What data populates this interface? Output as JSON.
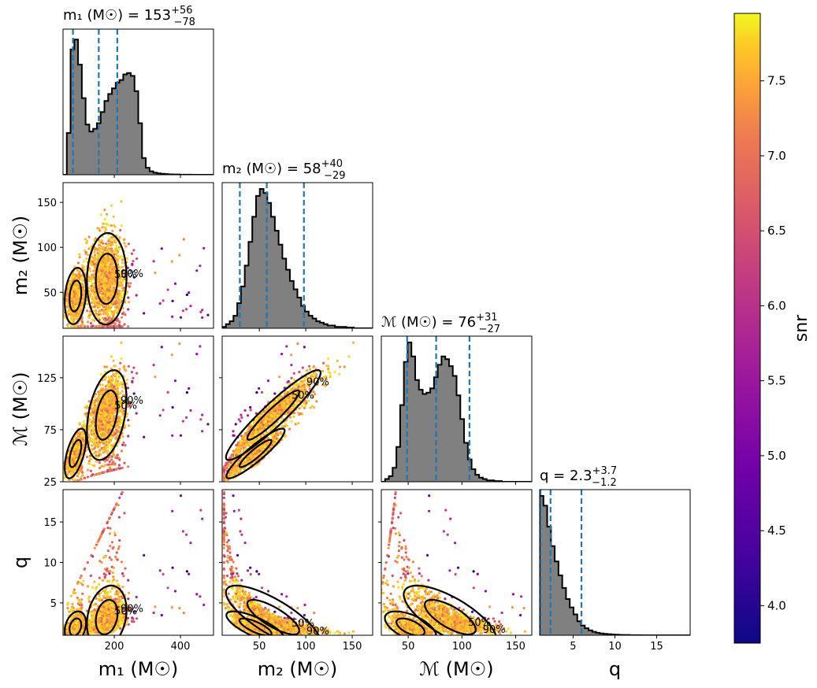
{
  "chart_data": {
    "type": "scatter",
    "layout": "corner-plot",
    "colormap": "plasma",
    "colorbar": {
      "label": "snr",
      "range": [
        3.75,
        7.95
      ],
      "ticks": [
        "4.0",
        "4.5",
        "5.0",
        "5.5",
        "6.0",
        "6.5",
        "7.0",
        "7.5"
      ],
      "tick_values": [
        4.0,
        4.5,
        5.0,
        5.5,
        6.0,
        6.5,
        7.0,
        7.5
      ]
    },
    "histogram_fill": "#808080",
    "quantile_line_color": "#1f77b4",
    "contour_levels": [
      "50%",
      "90%"
    ],
    "parameters": [
      {
        "key": "m1",
        "xlabel": "m₁ (M☉)",
        "range": [
          45,
          500
        ],
        "ticks": [
          200,
          400
        ],
        "title": "m₁ (M☉) = 153",
        "title_sup": "+56",
        "title_sub": "−78",
        "median": 153,
        "lower": 75,
        "upper": 209,
        "hist": [
          0.0,
          0.3,
          0.9,
          0.97,
          0.79,
          0.55,
          0.36,
          0.31,
          0.33,
          0.37,
          0.45,
          0.53,
          0.58,
          0.62,
          0.66,
          0.68,
          0.72,
          0.73,
          0.71,
          0.6,
          0.37,
          0.12,
          0.05,
          0.025,
          0.015,
          0.01,
          0.007,
          0.005,
          0.003,
          0.002,
          0.002,
          0.001,
          0.001,
          0.001,
          0.0,
          0.0,
          0.0,
          0.0,
          0.0,
          0.0
        ]
      },
      {
        "key": "m2",
        "xlabel": "m₂ (M☉)",
        "ylabel": "m₂ (M☉)",
        "range": [
          10,
          172
        ],
        "ticks": [
          50,
          100,
          150
        ],
        "title": "m₂ (M☉) = 58",
        "title_sup": "+40",
        "title_sub": "−29",
        "median": 58,
        "lower": 29,
        "upper": 98,
        "hist": [
          0.01,
          0.03,
          0.05,
          0.09,
          0.18,
          0.3,
          0.45,
          0.62,
          0.8,
          0.95,
          1.0,
          0.97,
          0.9,
          0.8,
          0.7,
          0.6,
          0.5,
          0.42,
          0.34,
          0.28,
          0.22,
          0.16,
          0.12,
          0.09,
          0.07,
          0.05,
          0.04,
          0.03,
          0.02,
          0.02,
          0.01,
          0.01,
          0.01,
          0.005,
          0.005,
          0.0,
          0.0,
          0.0,
          0.0,
          0.0
        ]
      },
      {
        "key": "mc",
        "xlabel": "ℳ (M☉)",
        "ylabel": "ℳ (M☉)",
        "range": [
          25,
          165
        ],
        "ticks": [
          50,
          100,
          150
        ],
        "yticks": [
          25,
          75,
          125
        ],
        "title": "ℳ (M☉) = 76",
        "title_sup": "+31",
        "title_sub": "−27",
        "median": 76,
        "lower": 49,
        "upper": 107,
        "hist": [
          0.0,
          0.02,
          0.04,
          0.1,
          0.25,
          0.55,
          0.86,
          1.0,
          0.9,
          0.73,
          0.66,
          0.63,
          0.64,
          0.67,
          0.75,
          0.84,
          0.9,
          0.88,
          0.83,
          0.76,
          0.62,
          0.45,
          0.28,
          0.16,
          0.09,
          0.05,
          0.03,
          0.02,
          0.01,
          0.01,
          0.005,
          0.005,
          0.0,
          0.0,
          0.0,
          0.0,
          0.0,
          0.0,
          0.0,
          0.0
        ]
      },
      {
        "key": "q",
        "xlabel": "q",
        "ylabel": "q",
        "range": [
          1,
          19
        ],
        "ticks": [
          5,
          10,
          15
        ],
        "yticks": [
          5,
          10,
          15
        ],
        "title": "q = 2.3",
        "title_sup": "+3.7",
        "title_sub": "−1.2",
        "median": 2.3,
        "lower": 1.1,
        "upper": 6.0,
        "hist": [
          1.0,
          0.93,
          0.78,
          0.64,
          0.53,
          0.43,
          0.34,
          0.26,
          0.2,
          0.15,
          0.1,
          0.07,
          0.05,
          0.035,
          0.025,
          0.018,
          0.013,
          0.01,
          0.008,
          0.006,
          0.004,
          0.003,
          0.002,
          0.002,
          0.001,
          0.001,
          0.001,
          0.0,
          0.0,
          0.0,
          0.0,
          0.0,
          0.0,
          0.0,
          0.0,
          0.0,
          0.0,
          0.0,
          0.0,
          0.0
        ]
      }
    ],
    "first_ylabel": "m₂ (M☉)",
    "scatter_note": "samples colored by snr; 50% and 90% credible contours drawn"
  }
}
